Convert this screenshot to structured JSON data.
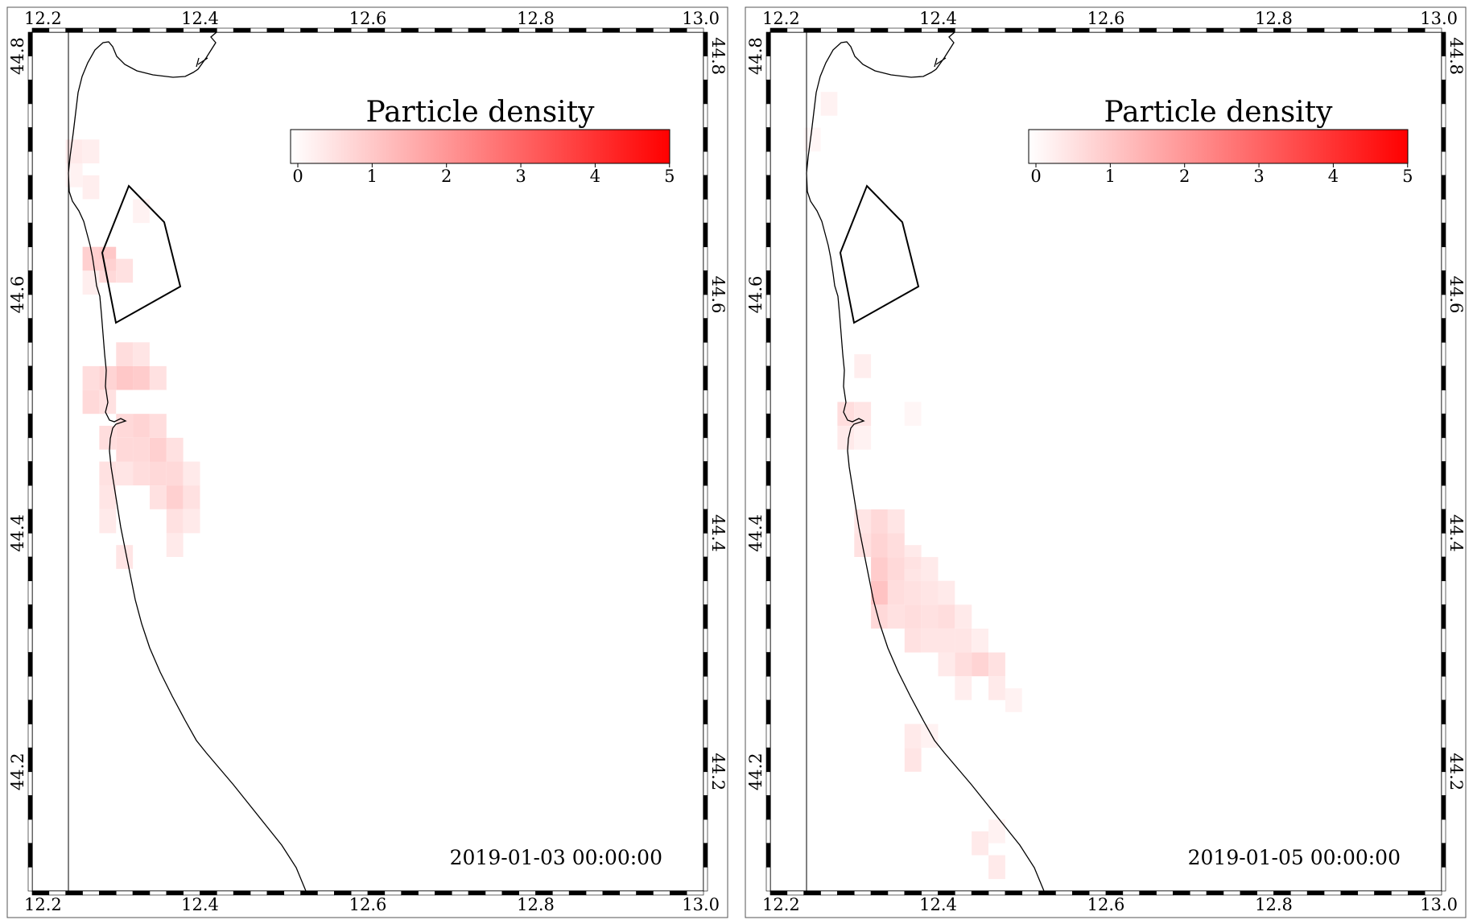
{
  "panels": [
    {
      "timestamp": "2019-01-03  00:00:00",
      "colorbar": {
        "title": "Particle density",
        "ticks": [
          "0",
          "1",
          "2",
          "3",
          "4",
          "5"
        ],
        "range": [
          0,
          5.1
        ],
        "color_min": "#ffffff",
        "color_max": "#ff0000"
      },
      "axes": {
        "lon_ticks": [
          "12.2",
          "12.4",
          "12.6",
          "12.8",
          "13.0"
        ],
        "lat_ticks": [
          "44.2",
          "44.4",
          "44.6",
          "44.8"
        ],
        "lon_range": [
          12.2,
          13.0
        ],
        "lat_range": [
          44.1,
          44.82
        ]
      },
      "density_cells": [
        {
          "lon": 12.25,
          "lat": 44.72,
          "v": 0.5
        },
        {
          "lon": 12.27,
          "lat": 44.72,
          "v": 0.4
        },
        {
          "lon": 12.25,
          "lat": 44.7,
          "v": 0.3
        },
        {
          "lon": 12.27,
          "lat": 44.69,
          "v": 0.4
        },
        {
          "lon": 12.27,
          "lat": 44.63,
          "v": 1.1
        },
        {
          "lon": 12.29,
          "lat": 44.63,
          "v": 1.3
        },
        {
          "lon": 12.29,
          "lat": 44.62,
          "v": 0.9
        },
        {
          "lon": 12.31,
          "lat": 44.62,
          "v": 0.7
        },
        {
          "lon": 12.27,
          "lat": 44.61,
          "v": 0.4
        },
        {
          "lon": 12.33,
          "lat": 44.67,
          "v": 0.3
        },
        {
          "lon": 12.27,
          "lat": 44.53,
          "v": 0.8
        },
        {
          "lon": 12.27,
          "lat": 44.51,
          "v": 0.9
        },
        {
          "lon": 12.29,
          "lat": 44.53,
          "v": 1.0
        },
        {
          "lon": 12.31,
          "lat": 44.53,
          "v": 1.3
        },
        {
          "lon": 12.33,
          "lat": 44.53,
          "v": 1.2
        },
        {
          "lon": 12.35,
          "lat": 44.53,
          "v": 0.7
        },
        {
          "lon": 12.31,
          "lat": 44.55,
          "v": 0.8
        },
        {
          "lon": 12.33,
          "lat": 44.55,
          "v": 0.6
        },
        {
          "lon": 12.29,
          "lat": 44.51,
          "v": 0.7
        },
        {
          "lon": 12.31,
          "lat": 44.49,
          "v": 0.9
        },
        {
          "lon": 12.33,
          "lat": 44.49,
          "v": 1.0
        },
        {
          "lon": 12.35,
          "lat": 44.49,
          "v": 0.8
        },
        {
          "lon": 12.29,
          "lat": 44.48,
          "v": 0.8
        },
        {
          "lon": 12.31,
          "lat": 44.47,
          "v": 0.9
        },
        {
          "lon": 12.33,
          "lat": 44.47,
          "v": 0.9
        },
        {
          "lon": 12.35,
          "lat": 44.47,
          "v": 1.1
        },
        {
          "lon": 12.37,
          "lat": 44.47,
          "v": 0.7
        },
        {
          "lon": 12.29,
          "lat": 44.45,
          "v": 0.7
        },
        {
          "lon": 12.31,
          "lat": 44.45,
          "v": 0.6
        },
        {
          "lon": 12.33,
          "lat": 44.45,
          "v": 0.8
        },
        {
          "lon": 12.35,
          "lat": 44.45,
          "v": 0.9
        },
        {
          "lon": 12.37,
          "lat": 44.45,
          "v": 0.9
        },
        {
          "lon": 12.39,
          "lat": 44.45,
          "v": 0.5
        },
        {
          "lon": 12.29,
          "lat": 44.43,
          "v": 0.6
        },
        {
          "lon": 12.35,
          "lat": 44.43,
          "v": 0.7
        },
        {
          "lon": 12.37,
          "lat": 44.43,
          "v": 1.1
        },
        {
          "lon": 12.39,
          "lat": 44.43,
          "v": 0.7
        },
        {
          "lon": 12.29,
          "lat": 44.41,
          "v": 0.5
        },
        {
          "lon": 12.37,
          "lat": 44.41,
          "v": 0.7
        },
        {
          "lon": 12.39,
          "lat": 44.41,
          "v": 0.5
        },
        {
          "lon": 12.37,
          "lat": 44.39,
          "v": 0.5
        },
        {
          "lon": 12.31,
          "lat": 44.38,
          "v": 0.6
        }
      ]
    },
    {
      "timestamp": "2019-01-05  00:00:00",
      "colorbar": {
        "title": "Particle density",
        "ticks": [
          "0",
          "1",
          "2",
          "3",
          "4",
          "5"
        ],
        "range": [
          0,
          5.1
        ],
        "color_min": "#ffffff",
        "color_max": "#ff0000"
      },
      "axes": {
        "lon_ticks": [
          "12.2",
          "12.4",
          "12.6",
          "12.8",
          "13.0"
        ],
        "lat_ticks": [
          "44.2",
          "44.4",
          "44.6",
          "44.8"
        ],
        "lon_range": [
          12.2,
          13.0
        ],
        "lat_range": [
          44.1,
          44.82
        ]
      },
      "density_cells": [
        {
          "lon": 12.27,
          "lat": 44.76,
          "v": 0.3
        },
        {
          "lon": 12.25,
          "lat": 44.73,
          "v": 0.2
        },
        {
          "lon": 12.31,
          "lat": 44.54,
          "v": 0.4
        },
        {
          "lon": 12.29,
          "lat": 44.5,
          "v": 0.8
        },
        {
          "lon": 12.31,
          "lat": 44.5,
          "v": 0.6
        },
        {
          "lon": 12.29,
          "lat": 44.48,
          "v": 0.5
        },
        {
          "lon": 12.31,
          "lat": 44.48,
          "v": 0.3
        },
        {
          "lon": 12.37,
          "lat": 44.5,
          "v": 0.2
        },
        {
          "lon": 12.31,
          "lat": 44.41,
          "v": 0.6
        },
        {
          "lon": 12.33,
          "lat": 44.41,
          "v": 0.9
        },
        {
          "lon": 12.35,
          "lat": 44.41,
          "v": 0.6
        },
        {
          "lon": 12.31,
          "lat": 44.39,
          "v": 0.7
        },
        {
          "lon": 12.33,
          "lat": 44.39,
          "v": 1.0
        },
        {
          "lon": 12.35,
          "lat": 44.39,
          "v": 0.8
        },
        {
          "lon": 12.37,
          "lat": 44.38,
          "v": 0.5
        },
        {
          "lon": 12.33,
          "lat": 44.37,
          "v": 1.2
        },
        {
          "lon": 12.35,
          "lat": 44.37,
          "v": 0.9
        },
        {
          "lon": 12.37,
          "lat": 44.37,
          "v": 0.6
        },
        {
          "lon": 12.39,
          "lat": 44.37,
          "v": 0.5
        },
        {
          "lon": 12.33,
          "lat": 44.35,
          "v": 1.4
        },
        {
          "lon": 12.35,
          "lat": 44.35,
          "v": 0.8
        },
        {
          "lon": 12.37,
          "lat": 44.35,
          "v": 0.7
        },
        {
          "lon": 12.39,
          "lat": 44.35,
          "v": 0.6
        },
        {
          "lon": 12.41,
          "lat": 44.35,
          "v": 0.5
        },
        {
          "lon": 12.33,
          "lat": 44.33,
          "v": 0.9
        },
        {
          "lon": 12.35,
          "lat": 44.33,
          "v": 0.7
        },
        {
          "lon": 12.37,
          "lat": 44.33,
          "v": 0.8
        },
        {
          "lon": 12.39,
          "lat": 44.33,
          "v": 0.7
        },
        {
          "lon": 12.41,
          "lat": 44.33,
          "v": 0.8
        },
        {
          "lon": 12.43,
          "lat": 44.33,
          "v": 0.5
        },
        {
          "lon": 12.37,
          "lat": 44.31,
          "v": 0.7
        },
        {
          "lon": 12.39,
          "lat": 44.31,
          "v": 0.6
        },
        {
          "lon": 12.41,
          "lat": 44.31,
          "v": 0.6
        },
        {
          "lon": 12.43,
          "lat": 44.31,
          "v": 0.6
        },
        {
          "lon": 12.45,
          "lat": 44.31,
          "v": 0.4
        },
        {
          "lon": 12.41,
          "lat": 44.29,
          "v": 0.5
        },
        {
          "lon": 12.43,
          "lat": 44.29,
          "v": 0.8
        },
        {
          "lon": 12.45,
          "lat": 44.29,
          "v": 1.0
        },
        {
          "lon": 12.47,
          "lat": 44.29,
          "v": 0.7
        },
        {
          "lon": 12.47,
          "lat": 44.27,
          "v": 0.5
        },
        {
          "lon": 12.49,
          "lat": 44.26,
          "v": 0.3
        },
        {
          "lon": 12.43,
          "lat": 44.27,
          "v": 0.4
        },
        {
          "lon": 12.37,
          "lat": 44.23,
          "v": 0.5
        },
        {
          "lon": 12.37,
          "lat": 44.21,
          "v": 0.6
        },
        {
          "lon": 12.39,
          "lat": 44.23,
          "v": 0.3
        },
        {
          "lon": 12.45,
          "lat": 44.14,
          "v": 0.5
        },
        {
          "lon": 12.47,
          "lat": 44.15,
          "v": 0.3
        },
        {
          "lon": 12.47,
          "lat": 44.12,
          "v": 0.5
        }
      ]
    }
  ]
}
